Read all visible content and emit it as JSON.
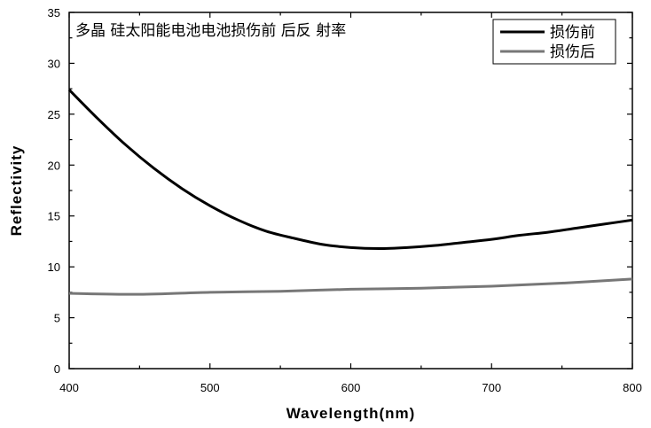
{
  "chart_data": {
    "type": "line",
    "title": "多晶 硅太阳能电池电池损伤前 后反 射率",
    "xlabel": "Wavelength(nm)",
    "ylabel": "Reflectivity",
    "xlim": [
      400,
      800
    ],
    "ylim": [
      0,
      35
    ],
    "xticks": [
      400,
      500,
      600,
      700,
      800
    ],
    "yticks": [
      0,
      5,
      10,
      15,
      20,
      25,
      30,
      35
    ],
    "grid": false,
    "legend_position": "top-right",
    "series": [
      {
        "name": "损伤前",
        "color": "#000000",
        "x": [
          400,
          420,
          440,
          460,
          480,
          500,
          520,
          540,
          560,
          580,
          600,
          620,
          640,
          660,
          680,
          700,
          720,
          740,
          760,
          780,
          800
        ],
        "y": [
          27.4,
          24.6,
          22.0,
          19.7,
          17.7,
          16.0,
          14.6,
          13.5,
          12.8,
          12.2,
          11.9,
          11.8,
          11.9,
          12.1,
          12.4,
          12.7,
          13.1,
          13.4,
          13.8,
          14.2,
          14.6
        ]
      },
      {
        "name": "损伤后",
        "color": "#777777",
        "x": [
          400,
          450,
          500,
          550,
          600,
          650,
          700,
          750,
          800
        ],
        "y": [
          7.4,
          7.3,
          7.5,
          7.6,
          7.8,
          7.9,
          8.1,
          8.4,
          8.8
        ]
      }
    ]
  }
}
